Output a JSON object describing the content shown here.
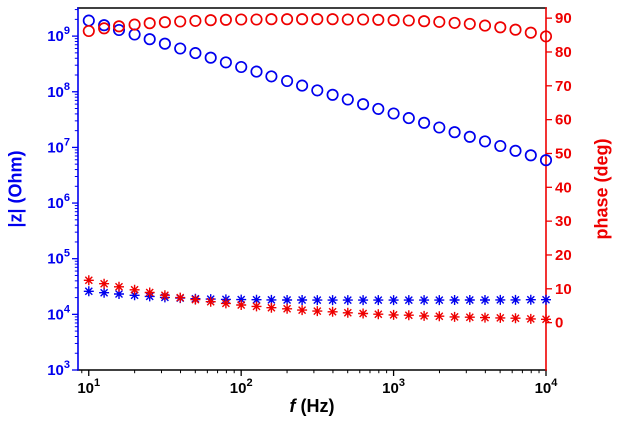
{
  "chart_data": {
    "type": "scatter",
    "title": "",
    "grid": false,
    "legend": null,
    "x_axis": {
      "label": "f (Hz)",
      "label_italic": "f",
      "label_rest": "(Hz)",
      "scale": "log",
      "lim": [
        8.5,
        10000
      ],
      "ticks": [
        10,
        100,
        1000,
        10000
      ]
    },
    "left_axis": {
      "label": "|z| (Ohm)",
      "scale": "log",
      "color": "#0000ee",
      "lim": [
        1000,
        3200000000
      ],
      "ticks": [
        1000,
        10000,
        100000,
        1000000,
        10000000,
        100000000,
        1000000000
      ]
    },
    "right_axis": {
      "label": "phase (deg)",
      "scale": "linear",
      "color": "#ee0000",
      "lim": [
        -14,
        93
      ],
      "ticks": [
        0,
        10,
        20,
        30,
        40,
        50,
        60,
        70,
        80,
        90
      ]
    },
    "frequencies": [
      10,
      12.6,
      15.8,
      20,
      25.1,
      31.6,
      39.8,
      50.1,
      63.1,
      79.4,
      100,
      126,
      158,
      200,
      251,
      316,
      398,
      501,
      631,
      794,
      1000,
      1259,
      1585,
      1995,
      2512,
      3162,
      3981,
      5012,
      6310,
      7943,
      10000
    ],
    "series": [
      {
        "id": "impedance-circles",
        "axis": "left",
        "marker": "circle",
        "color": "#0000ee",
        "values": [
          1900000000.0,
          1570000000.0,
          1290000000.0,
          1070000000.0,
          880000000.0,
          730000000.0,
          600000000.0,
          495000000.0,
          410000000.0,
          337000000.0,
          278000000.0,
          230000000.0,
          189000000.0,
          156000000.0,
          129000000.0,
          106000000.0,
          88000000.0,
          72500000.0,
          59800000.0,
          49300000.0,
          40700000.0,
          33600000.0,
          27700000.0,
          22800000.0,
          18800000.0,
          15500000.0,
          12800000.0,
          10600000.0,
          8700000.0,
          7200000.0,
          5900000.0
        ]
      },
      {
        "id": "phase-circles",
        "axis": "right",
        "marker": "circle",
        "color": "#ee0000",
        "values": [
          86.2,
          87.0,
          87.6,
          88.1,
          88.5,
          88.8,
          89.0,
          89.2,
          89.4,
          89.5,
          89.6,
          89.6,
          89.7,
          89.7,
          89.7,
          89.7,
          89.7,
          89.6,
          89.6,
          89.5,
          89.4,
          89.3,
          89.1,
          88.9,
          88.6,
          88.3,
          87.8,
          87.3,
          86.6,
          85.7,
          84.6
        ]
      },
      {
        "id": "impedance-asterisks",
        "axis": "left",
        "marker": "asterisk",
        "color": "#0000ee",
        "values": [
          26000.0,
          24500.0,
          23200.0,
          22000.0,
          21000.0,
          20200.0,
          19600.0,
          19100.0,
          18800.0,
          18600.0,
          18400.0,
          18300.0,
          18200.0,
          18100.0,
          18100.0,
          18000.0,
          18000.0,
          18000.0,
          18000.0,
          18000.0,
          18000.0,
          18000.0,
          18000.0,
          18000.0,
          18100.0,
          18100.0,
          18100.0,
          18200.0,
          18200.0,
          18300.0,
          18300.0
        ]
      },
      {
        "id": "phase-asterisks",
        "axis": "right",
        "marker": "asterisk",
        "color": "#ee0000",
        "values": [
          12.5,
          11.5,
          10.6,
          9.7,
          8.9,
          8.1,
          7.4,
          6.8,
          6.2,
          5.7,
          5.2,
          4.8,
          4.4,
          4.1,
          3.7,
          3.4,
          3.2,
          2.9,
          2.7,
          2.5,
          2.3,
          2.2,
          2.0,
          1.9,
          1.7,
          1.6,
          1.5,
          1.4,
          1.3,
          1.1,
          1.0
        ]
      }
    ]
  }
}
